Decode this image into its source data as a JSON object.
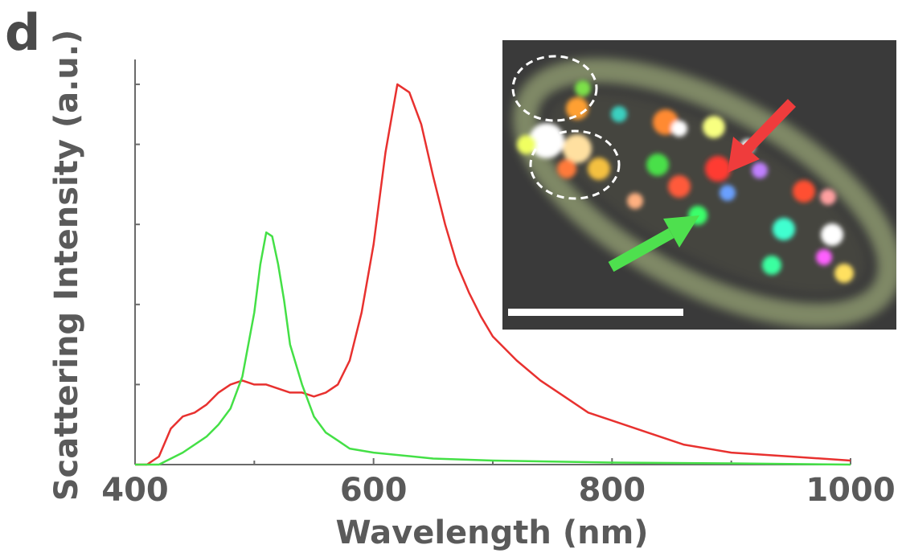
{
  "panel_label": "d",
  "chart_data": {
    "type": "line",
    "xlabel": "Wavelength (nm)",
    "ylabel": "Scattering Intensity (a.u.)",
    "xlim": [
      400,
      1000
    ],
    "ylim": [
      0,
      1.0
    ],
    "x_ticks": [
      400,
      600,
      800,
      1000
    ],
    "y_tick_labels_shown": false,
    "grid": false,
    "legend": "none",
    "series": [
      {
        "color": "#e8312f",
        "x": [
          400,
          410,
          420,
          430,
          440,
          450,
          460,
          470,
          480,
          490,
          500,
          510,
          520,
          530,
          540,
          550,
          560,
          570,
          580,
          590,
          600,
          610,
          620,
          630,
          640,
          650,
          660,
          670,
          680,
          690,
          700,
          720,
          740,
          760,
          780,
          800,
          830,
          860,
          900,
          950,
          1000
        ],
        "y": [
          0.0,
          0.0,
          0.02,
          0.09,
          0.12,
          0.13,
          0.15,
          0.18,
          0.2,
          0.21,
          0.2,
          0.2,
          0.19,
          0.18,
          0.18,
          0.17,
          0.18,
          0.2,
          0.26,
          0.38,
          0.55,
          0.78,
          0.95,
          0.93,
          0.85,
          0.72,
          0.6,
          0.5,
          0.43,
          0.37,
          0.32,
          0.26,
          0.21,
          0.17,
          0.13,
          0.11,
          0.08,
          0.05,
          0.03,
          0.02,
          0.01
        ]
      },
      {
        "color": "#44e046",
        "x": [
          400,
          420,
          440,
          460,
          470,
          480,
          490,
          500,
          505,
          510,
          515,
          520,
          525,
          530,
          540,
          550,
          560,
          570,
          580,
          600,
          650,
          700,
          800,
          900,
          1000
        ],
        "y": [
          0.0,
          0.0,
          0.03,
          0.07,
          0.1,
          0.14,
          0.22,
          0.38,
          0.5,
          0.58,
          0.57,
          0.5,
          0.41,
          0.3,
          0.2,
          0.12,
          0.08,
          0.06,
          0.04,
          0.03,
          0.015,
          0.01,
          0.005,
          0.003,
          0.0
        ]
      }
    ]
  },
  "inset": {
    "type": "dark-field-microscopy-image",
    "background": "#3a3a3a",
    "arrows": [
      {
        "color": "#ef3c3c",
        "points_to": "red-particle"
      },
      {
        "color": "#4ee04e",
        "points_to": "green-particle"
      }
    ],
    "scale_bar_color": "#ffffff"
  }
}
